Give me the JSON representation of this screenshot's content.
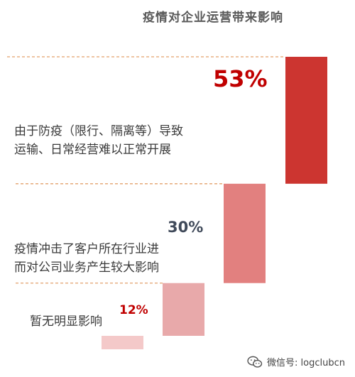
{
  "chart_data": {
    "type": "bar",
    "title": "疫情对企业运营带来影响",
    "categories": [
      "暂无明显影响",
      "疫情冲击了客户所在行业进而对公司业务产生较大影响",
      "由于防疫（限行、隔离等）导致运输、日常经营难以正常开展"
    ],
    "values": [
      12,
      30,
      53
    ],
    "value_labels": [
      "12%",
      "30%",
      "53%"
    ],
    "category_lines": [
      [
        "暂无明显影响"
      ],
      [
        "疫情冲击了客户所在行业进",
        "而对公司业务产生较大影响"
      ],
      [
        "由于防疫（限行、隔离等）导致",
        "运输、日常经营难以正常开展"
      ]
    ],
    "colors": [
      "#f4c9c9",
      "#e8a9aa",
      "#e2807f",
      "#cc3530"
    ],
    "value_label_colors": [
      "#c00000",
      "#404a5a",
      "#c00000"
    ],
    "ylim": [
      0,
      53
    ],
    "grid": false,
    "legend": "none"
  },
  "watermark": {
    "text": "微信号: logclubcn",
    "icon": "wechat-icon"
  }
}
